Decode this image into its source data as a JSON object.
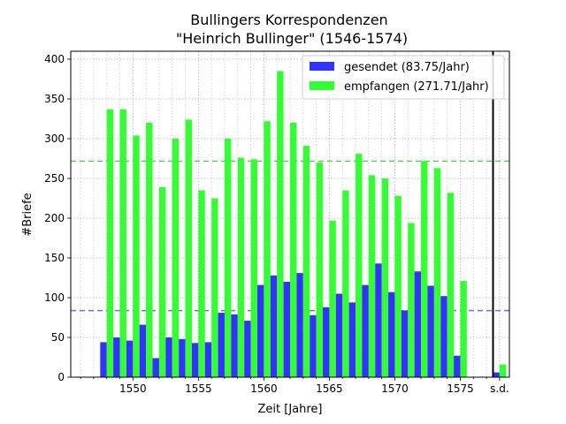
{
  "chart_data": {
    "type": "bar",
    "title": "Bullingers Korrespondenzen",
    "subtitle": "\"Heinrich Bullinger\" (1546-1574)",
    "xlabel": "Zeit [Jahre]",
    "ylabel": "#Briefe",
    "xlim": [
      1545.75,
      1579.25
    ],
    "ylim": [
      0,
      410
    ],
    "grid": true,
    "legend_position": "top-right",
    "x_ticks": [
      1550,
      1555,
      1560,
      1565,
      1570,
      1575
    ],
    "x_tick_labels": [
      "1550",
      "1555",
      "1560",
      "1565",
      "1570",
      "1575"
    ],
    "extra_tick": {
      "x": 1578.5,
      "label": "s.d."
    },
    "y_ticks": [
      0,
      50,
      100,
      150,
      200,
      250,
      300,
      350,
      400
    ],
    "y_tick_labels": [
      "0",
      "50",
      "100",
      "150",
      "200",
      "250",
      "300",
      "350",
      "400"
    ],
    "years": [
      1546,
      1547,
      1548,
      1549,
      1550,
      1551,
      1552,
      1553,
      1554,
      1555,
      1556,
      1557,
      1558,
      1559,
      1560,
      1561,
      1562,
      1563,
      1564,
      1565,
      1566,
      1567,
      1568,
      1569,
      1570,
      1571,
      1572,
      1573,
      1574,
      1575,
      1576,
      1577
    ],
    "series": [
      {
        "name": "gesendet (83.75/Jahr)",
        "color": "#3333ff",
        "average": 83.75,
        "values": [
          0,
          0,
          44,
          50,
          46,
          66,
          24,
          50,
          48,
          43,
          44,
          81,
          79,
          71,
          116,
          128,
          120,
          131,
          78,
          88,
          105,
          94,
          116,
          143,
          107,
          84,
          133,
          115,
          102,
          27,
          0,
          0
        ]
      },
      {
        "name": "empfangen (271.71/Jahr)",
        "color": "#33ff33",
        "average": 271.71,
        "values": [
          0,
          0,
          337,
          337,
          304,
          320,
          239,
          300,
          324,
          235,
          225,
          300,
          276,
          274,
          322,
          385,
          320,
          291,
          270,
          197,
          235,
          281,
          254,
          250,
          228,
          194,
          272,
          263,
          232,
          121,
          0,
          0
        ]
      }
    ],
    "undated": {
      "label": "s.d.",
      "gesendet": 6,
      "empfangen": 16
    },
    "divider_x": 1577.5
  }
}
